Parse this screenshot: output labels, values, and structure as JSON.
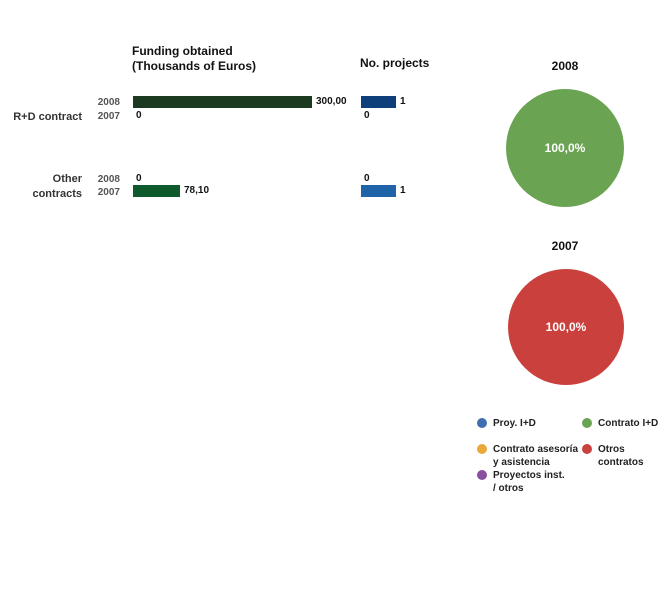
{
  "chart_data": [
    {
      "type": "bar",
      "orientation": "horizontal",
      "title": "Funding obtained (Thousands of Euros)",
      "title_lines": [
        "Funding obtained",
        "(Thousands of Euros)"
      ],
      "categories": [
        "R+D contract",
        "Other contracts"
      ],
      "category_lines": [
        [
          "R+D contract"
        ],
        [
          "Other",
          "contracts"
        ]
      ],
      "series": [
        {
          "name": "2008",
          "values": [
            300,
            0
          ],
          "labels": [
            "300,00",
            "0"
          ],
          "colors": [
            "#1b3a1f",
            "#1b3a1f"
          ]
        },
        {
          "name": "2007",
          "values": [
            0,
            78.1
          ],
          "labels": [
            "0",
            "78,10"
          ],
          "colors": [
            "#0e5a2c",
            "#0e5a2c"
          ]
        }
      ],
      "xlim": [
        0,
        300
      ]
    },
    {
      "type": "bar",
      "orientation": "horizontal",
      "title": "No. projects",
      "categories": [
        "R+D contract",
        "Other contracts"
      ],
      "series": [
        {
          "name": "2008",
          "values": [
            1,
            0
          ],
          "labels": [
            "1",
            "0"
          ],
          "colors": [
            "#0f3f7a",
            "#0f3f7a"
          ]
        },
        {
          "name": "2007",
          "values": [
            0,
            1
          ],
          "labels": [
            "0",
            "1"
          ],
          "colors": [
            "#1f63a8",
            "#1f63a8"
          ]
        }
      ],
      "xlim": [
        0,
        1
      ]
    },
    {
      "type": "pie",
      "title": "2008",
      "slices": [
        {
          "name": "Contrato I+D",
          "value": 100,
          "label": "100,0%",
          "color": "#6aa452"
        }
      ]
    },
    {
      "type": "pie",
      "title": "2007",
      "slices": [
        {
          "name": "Otros contratos",
          "value": 100,
          "label": "100,0%",
          "color": "#c9403d"
        }
      ]
    }
  ],
  "legend": [
    {
      "label": "Proy. I+D",
      "lines": [
        "Proy. I+D"
      ],
      "color": "#3f6fae"
    },
    {
      "label": "Contrato I+D",
      "lines": [
        "Contrato I+D"
      ],
      "color": "#6aa452"
    },
    {
      "label": "Contrato asesoría y asistencia",
      "lines": [
        "Contrato asesoría",
        "y asistencia"
      ],
      "color": "#e8a83c"
    },
    {
      "label": "Otros contratos",
      "lines": [
        "Otros",
        "contratos"
      ],
      "color": "#c9403d"
    },
    {
      "label": "Proyectos inst. / otros",
      "lines": [
        "Proyectos inst.",
        "/ otros"
      ],
      "color": "#8a4fa0"
    }
  ]
}
